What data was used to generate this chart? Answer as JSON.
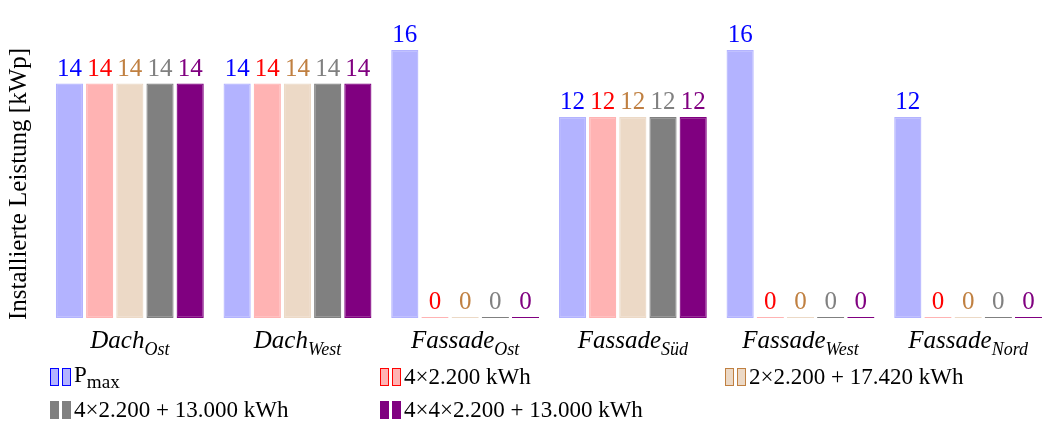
{
  "chart_data": {
    "type": "bar",
    "ylabel": "Installierte Leistung [kWp]",
    "categories": [
      "Dach$_{Ost}$",
      "Dach$_{West}$",
      "Fassade$_{Ost}$",
      "Fassade$_{Süd}$",
      "Fassade$_{West}$",
      "Fassade$_{Nord}$"
    ],
    "series": [
      {
        "name": "P$_{max}$",
        "color": "#b3b3ff",
        "values": [
          14,
          14,
          16,
          12,
          16,
          12
        ]
      },
      {
        "name": "4×2.200 kWh",
        "color": "#ffb3b3",
        "values": [
          14,
          14,
          0,
          12,
          0,
          0
        ]
      },
      {
        "name": "2×2.200 + 17.420 kWh",
        "color": "#ecd9c6",
        "values": [
          14,
          14,
          0,
          12,
          0,
          0
        ]
      },
      {
        "name": "4×2.200 + 13.000 kWh",
        "color": "#808080",
        "values": [
          14,
          14,
          0,
          12,
          0,
          0
        ]
      },
      {
        "name": "4×4×2.200 + 13.000 kWh",
        "color": "#800080",
        "values": [
          14,
          14,
          0,
          12,
          0,
          0
        ]
      }
    ],
    "data_labels": true,
    "legend": "bottom",
    "grid": false
  }
}
